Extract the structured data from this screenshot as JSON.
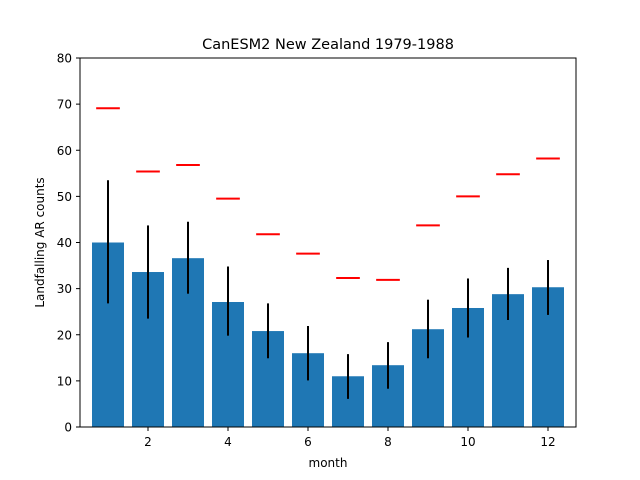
{
  "chart_data": {
    "type": "bar",
    "title": "CanESM2 New Zealand 1979-1988",
    "xlabel": "month",
    "ylabel": "Landfalling AR counts",
    "x": [
      1,
      2,
      3,
      4,
      5,
      6,
      7,
      8,
      9,
      10,
      11,
      12
    ],
    "series": [
      {
        "values": [
          40.0,
          33.6,
          36.6,
          27.1,
          20.8,
          16.0,
          11.0,
          13.4,
          21.2,
          25.8,
          28.8,
          30.3
        ],
        "error_low": [
          26.8,
          23.5,
          28.9,
          19.8,
          14.9,
          10.1,
          6.1,
          8.3,
          14.9,
          19.4,
          23.2,
          24.3
        ],
        "error_high": [
          53.5,
          43.7,
          44.5,
          34.8,
          26.8,
          21.9,
          15.8,
          18.4,
          27.6,
          32.2,
          34.5,
          36.2
        ]
      },
      {
        "values": [
          69.1,
          55.4,
          56.8,
          49.5,
          41.8,
          37.6,
          32.3,
          31.9,
          43.7,
          50.0,
          54.8,
          58.2
        ],
        "marker": "horizontal-line"
      }
    ],
    "xlim": [
      0.3,
      12.7
    ],
    "ylim": [
      0,
      80
    ],
    "xticks": [
      2,
      4,
      6,
      8,
      10,
      12
    ],
    "yticks": [
      0,
      10,
      20,
      30,
      40,
      50,
      60,
      70,
      80
    ],
    "grid": false,
    "colors": {
      "bar": "#1f77b4",
      "errorbar": "#000000",
      "marker": "#ff0000",
      "axes": "#000000"
    }
  }
}
